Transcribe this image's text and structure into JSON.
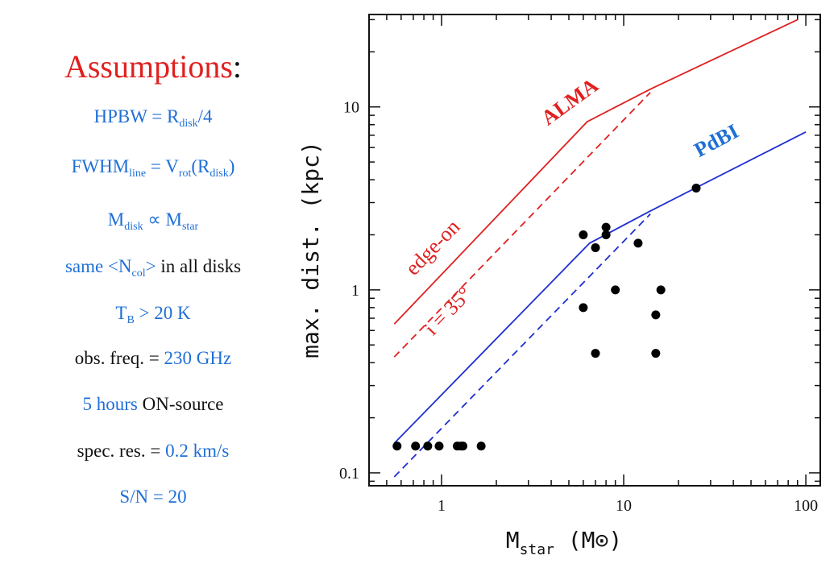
{
  "assumptions": {
    "title": "Assumptions",
    "title_colon": ":",
    "hpbw": {
      "prefix": "HPBW = R",
      "sub": "disk",
      "suffix": "/4"
    },
    "fwhm": {
      "prefix": "FWHM",
      "sub1": "line",
      "mid": " = V",
      "sub2": "rot",
      "mid2": "(R",
      "sub3": "disk",
      "suffix": ")"
    },
    "mdisk": {
      "prefix": "M",
      "sub1": "disk",
      "mid": " ∝ M",
      "sub2": "star"
    },
    "ncol": {
      "prefix": "same <N",
      "sub": "col",
      "suffix": "> ",
      "rest": "in all disks"
    },
    "tb": {
      "prefix": "T",
      "sub": "B",
      "suffix": " > 20 K"
    },
    "freq": {
      "prefix": "obs. freq. = ",
      "value": "230 GHz"
    },
    "hours": {
      "value": "5 hours",
      "suffix": " ON-source"
    },
    "res": {
      "prefix": "spec. res. = ",
      "value": "0.2 km/s"
    },
    "sn": {
      "value": "S/N = 20"
    }
  },
  "chart_data": {
    "type": "line",
    "xscale": "log",
    "yscale": "log",
    "xlim": [
      0.4,
      120
    ],
    "ylim": [
      0.085,
      32
    ],
    "x_ticks": [
      1,
      10,
      100
    ],
    "x_tick_labels": [
      "1",
      "10",
      "100"
    ],
    "y_ticks": [
      0.1,
      1,
      10
    ],
    "y_tick_labels": [
      "0.1",
      "1",
      "10"
    ],
    "xlabel": {
      "main": "M",
      "sub": "star",
      "unit_open": " (M",
      "sun": "⊙",
      "unit_close": ")"
    },
    "ylabel": "max. dist. (kpc)",
    "series": [
      {
        "name": "ALMA",
        "style": "solid",
        "color": "#e02020",
        "x": [
          0.55,
          6.3,
          14,
          90
        ],
        "y": [
          0.65,
          8.3,
          12.5,
          30
        ]
      },
      {
        "name": "",
        "style": "dashed",
        "color": "#e02020",
        "x": [
          0.55,
          14
        ],
        "y": [
          0.43,
          12.0
        ]
      },
      {
        "name": "PdBI",
        "style": "solid",
        "color": "#1f2fd0",
        "x": [
          0.55,
          6.5,
          14,
          100
        ],
        "y": [
          0.145,
          1.8,
          2.7,
          7.3
        ]
      },
      {
        "name": "",
        "style": "dashed",
        "color": "#1f2fd0",
        "x": [
          0.55,
          14
        ],
        "y": [
          0.095,
          2.6
        ]
      }
    ],
    "points": {
      "x": [
        0.57,
        0.72,
        0.84,
        0.97,
        1.22,
        1.28,
        1.31,
        1.65,
        6,
        7,
        8,
        6,
        7,
        8,
        9,
        12,
        15,
        15,
        16,
        25
      ],
      "y": [
        0.14,
        0.14,
        0.14,
        0.14,
        0.14,
        0.14,
        0.14,
        0.14,
        2.0,
        1.7,
        2.2,
        0.8,
        0.45,
        2.0,
        1.0,
        1.8,
        0.73,
        0.45,
        1.0,
        3.6
      ]
    },
    "annotations": {
      "alma": "ALMA",
      "pdbi": "PdBI",
      "edge_on": "edge-on",
      "incl": "i = 35°"
    }
  }
}
